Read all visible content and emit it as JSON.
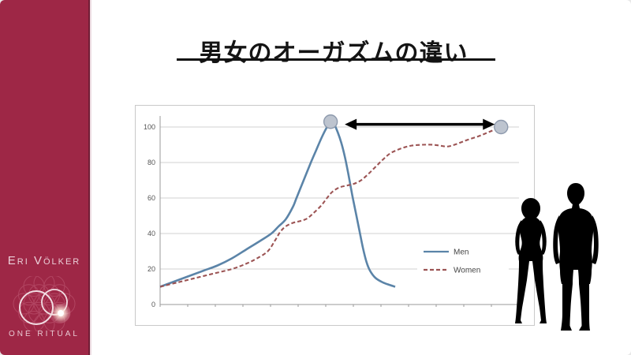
{
  "slide": {
    "title": "男女のオーガズムの違い"
  },
  "sidebar": {
    "brand_name": "Eri Völker",
    "logo_text": "ONE RITUAL",
    "background_color": "#9e2746",
    "text_color": "#ebcfd8"
  },
  "icons": {
    "logo": "one-ritual-overlapping-circles-logo",
    "logo_pattern": "flower-of-life-pattern",
    "logo_glow": "glow-dot",
    "peak_markers": "circle-marker",
    "gap_arrow": "double-headed-arrow",
    "silhouettes": [
      "woman-silhouette",
      "man-silhouette"
    ]
  },
  "chart_data": {
    "type": "line",
    "title": "",
    "xlabel": "",
    "ylabel": "",
    "ylim": [
      0,
      110
    ],
    "yticks": [
      0,
      20,
      40,
      60,
      80,
      100
    ],
    "x_axis": {
      "tick_count": 13,
      "labels_visible": false
    },
    "grid": "horizontal",
    "legend_position": "inside-right",
    "series": [
      {
        "name": "Men",
        "color": "#5b84a8",
        "style": "solid",
        "points": [
          [
            0,
            10
          ],
          [
            4,
            13
          ],
          [
            8,
            16
          ],
          [
            12,
            19
          ],
          [
            16,
            22
          ],
          [
            20,
            26
          ],
          [
            24,
            31
          ],
          [
            28,
            36
          ],
          [
            31,
            40
          ],
          [
            33,
            44
          ],
          [
            35,
            48
          ],
          [
            37,
            55
          ],
          [
            38,
            60
          ],
          [
            40,
            70
          ],
          [
            42,
            80
          ],
          [
            43.5,
            87
          ],
          [
            45,
            94
          ],
          [
            46.5,
            100
          ],
          [
            47.5,
            103
          ],
          [
            48.5,
            101.5
          ],
          [
            49.5,
            97
          ],
          [
            50.5,
            91
          ],
          [
            51.5,
            83
          ],
          [
            52.5,
            73
          ],
          [
            53.5,
            62
          ],
          [
            54.5,
            52
          ],
          [
            55.5,
            42
          ],
          [
            56.5,
            32
          ],
          [
            57.5,
            24
          ],
          [
            58.5,
            19
          ],
          [
            60,
            15
          ],
          [
            62,
            12.5
          ],
          [
            64,
            11
          ],
          [
            65.5,
            10
          ]
        ]
      },
      {
        "name": "Women",
        "color": "#9c5454",
        "style": "dashed",
        "points": [
          [
            0,
            10
          ],
          [
            5,
            12.5
          ],
          [
            10,
            15
          ],
          [
            15,
            17.5
          ],
          [
            20,
            20
          ],
          [
            24,
            23
          ],
          [
            27,
            26
          ],
          [
            30,
            30
          ],
          [
            32,
            36
          ],
          [
            33.5,
            41
          ],
          [
            35,
            44
          ],
          [
            37,
            46
          ],
          [
            39,
            47
          ],
          [
            41,
            48.5
          ],
          [
            43,
            52
          ],
          [
            45,
            56
          ],
          [
            46.5,
            60
          ],
          [
            48,
            63.5
          ],
          [
            50,
            66
          ],
          [
            52,
            67
          ],
          [
            54,
            68
          ],
          [
            56,
            70
          ],
          [
            58,
            73.5
          ],
          [
            60,
            77.5
          ],
          [
            62,
            81.5
          ],
          [
            64,
            85
          ],
          [
            66,
            87
          ],
          [
            68,
            88.5
          ],
          [
            70,
            89.5
          ],
          [
            73,
            90
          ],
          [
            76,
            90
          ],
          [
            78,
            89.5
          ],
          [
            80,
            89
          ],
          [
            82,
            90
          ],
          [
            84,
            91.5
          ],
          [
            86,
            93
          ],
          [
            89,
            95
          ],
          [
            92,
            97.5
          ],
          [
            95,
            100
          ]
        ]
      }
    ],
    "markers": [
      {
        "series": "Men",
        "t": 47.5,
        "v": 103
      },
      {
        "series": "Women",
        "t": 95,
        "v": 100
      }
    ],
    "annotation_arrow": {
      "v": 101.5,
      "color": "#000000"
    }
  }
}
